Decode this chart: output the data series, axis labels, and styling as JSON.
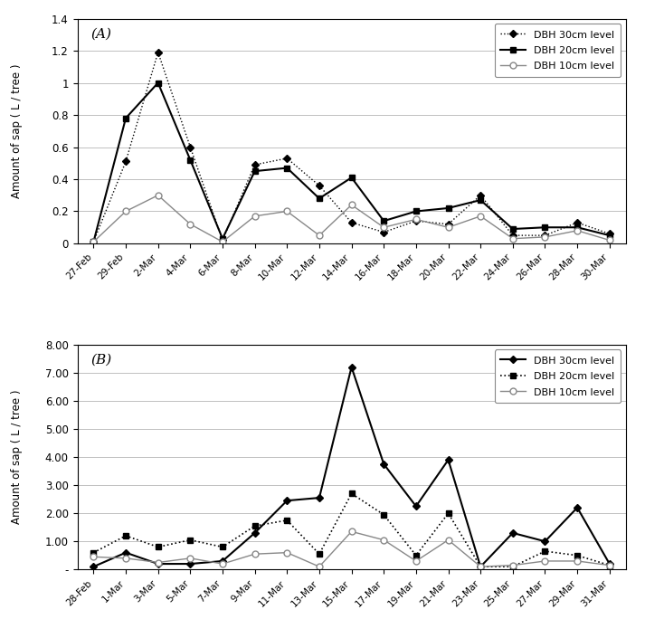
{
  "A": {
    "dates": [
      "27-Feb",
      "29-Feb",
      "2-Mar",
      "4-Mar",
      "6-Mar",
      "8-Mar",
      "10-Mar",
      "12-Mar",
      "14-Mar",
      "16-Mar",
      "18-Mar",
      "20-Mar",
      "22-Mar",
      "24-Mar",
      "26-Mar",
      "28-Mar",
      "30-Mar"
    ],
    "dbh30": [
      0.01,
      0.51,
      1.19,
      0.6,
      0.02,
      0.49,
      0.53,
      0.36,
      0.13,
      0.07,
      0.14,
      0.12,
      0.3,
      0.05,
      0.05,
      0.13,
      0.06
    ],
    "dbh20": [
      0.01,
      0.78,
      1.0,
      0.52,
      0.03,
      0.45,
      0.47,
      0.28,
      0.41,
      0.14,
      0.2,
      0.22,
      0.27,
      0.09,
      0.1,
      0.1,
      0.05
    ],
    "dbh10": [
      0.01,
      0.2,
      0.3,
      0.12,
      0.01,
      0.17,
      0.2,
      0.05,
      0.24,
      0.1,
      0.15,
      0.1,
      0.17,
      0.03,
      0.04,
      0.08,
      0.02
    ],
    "ylabel": "Amount of sap ( L / tree )",
    "ylim": [
      0,
      1.4
    ],
    "yticks": [
      0,
      0.2,
      0.4,
      0.6,
      0.8,
      1.0,
      1.2,
      1.4
    ],
    "yticklabels": [
      "0",
      "0.2",
      "0.4",
      "0.6",
      "0.8",
      "1",
      "1.2",
      "1.4"
    ],
    "label": "(A)",
    "legend_30": "DBH 30cm level",
    "legend_20": "DBH 20cm level",
    "legend_10": "DBH 10cm level"
  },
  "B": {
    "dates": [
      "28-Feb",
      "1-Mar",
      "3-Mar",
      "5-Mar",
      "7-Mar",
      "9-Mar",
      "11-Mar",
      "13-Mar",
      "15-Mar",
      "17-Mar",
      "19-Mar",
      "21-Mar",
      "23-Mar",
      "25-Mar",
      "27-Mar",
      "29-Mar",
      "31-Mar"
    ],
    "dbh30": [
      0.1,
      0.6,
      0.2,
      0.2,
      0.3,
      1.3,
      2.45,
      2.55,
      7.2,
      3.75,
      2.25,
      3.9,
      0.1,
      1.3,
      1.0,
      2.2,
      0.2
    ],
    "dbh20": [
      0.6,
      1.2,
      0.8,
      1.05,
      0.8,
      1.55,
      1.75,
      0.55,
      2.7,
      1.95,
      0.5,
      2.0,
      0.1,
      0.1,
      0.65,
      0.5,
      0.15
    ],
    "dbh10": [
      0.45,
      0.4,
      0.25,
      0.4,
      0.2,
      0.55,
      0.6,
      0.1,
      1.35,
      1.05,
      0.3,
      1.05,
      0.1,
      0.15,
      0.3,
      0.3,
      0.15
    ],
    "ylabel": "Amount of sap ( L / tree )",
    "ylim": [
      0,
      8.0
    ],
    "yticks": [
      0.0,
      1.0,
      2.0,
      3.0,
      4.0,
      5.0,
      6.0,
      7.0,
      8.0
    ],
    "yticklabels": [
      "-",
      "1.00",
      "2.00",
      "3.00",
      "4.00",
      "5.00",
      "6.00",
      "7.00",
      "8.00"
    ],
    "label": "(B)",
    "legend_30": "DBH 30cm level",
    "legend_20": "DBH 20cm level",
    "legend_10": "DBH 10cm level"
  },
  "line_color_black": "#000000",
  "line_color_gray": "#888888",
  "bg_color": "#ffffff"
}
